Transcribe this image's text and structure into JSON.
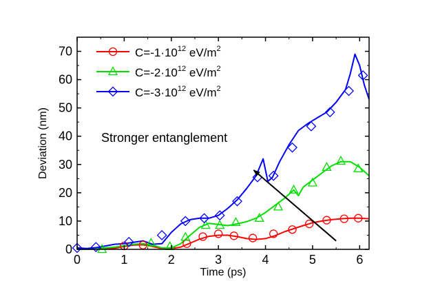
{
  "chart_data": {
    "type": "line",
    "xlabel": "Time (ps)",
    "ylabel": "Deviation (nm)",
    "xlim": [
      0,
      6.2
    ],
    "ylim": [
      0,
      75
    ],
    "xticks": [
      "0",
      "1",
      "2",
      "3",
      "4",
      "5",
      "6"
    ],
    "yticks": [
      "0",
      "10",
      "20",
      "30",
      "40",
      "50",
      "60",
      "70"
    ],
    "grid": false,
    "legend_position": "top-left",
    "annotation": {
      "text": "Stronger entanglement",
      "arrow_from": [
        5.5,
        3
      ],
      "arrow_to": [
        3.75,
        28
      ]
    },
    "series": [
      {
        "name_prefix": "C=-1·10",
        "name_exp": "12",
        "name_suffix": " eV/m",
        "name_unit_exp": "2",
        "color": "#ff0000",
        "marker": "circle",
        "x": [
          0,
          0.2,
          0.4,
          0.6,
          0.8,
          1.0,
          1.2,
          1.4,
          1.6,
          1.8,
          2.0,
          2.2,
          2.4,
          2.6,
          2.8,
          3.0,
          3.2,
          3.4,
          3.6,
          3.8,
          4.0,
          4.2,
          4.4,
          4.6,
          4.8,
          5.0,
          5.2,
          5.4,
          5.6,
          5.8,
          6.0,
          6.2
        ],
        "y": [
          0,
          0,
          0.1,
          0.2,
          0.4,
          1.0,
          1.5,
          1.6,
          1.0,
          0.3,
          0.3,
          0.8,
          2.2,
          3.6,
          4.6,
          5.0,
          5.0,
          4.5,
          3.8,
          3.5,
          3.8,
          4.8,
          6.2,
          7.3,
          8.4,
          9.4,
          10.0,
          10.5,
          10.8,
          11.0,
          11.0,
          10.8
        ],
        "marker_x": [
          1.0,
          1.4,
          2.33,
          2.67,
          3.0,
          3.33,
          3.73,
          4.17,
          4.57,
          4.93,
          5.3,
          5.67,
          5.97
        ],
        "marker_y": [
          1.2,
          1.5,
          2.0,
          4.5,
          5.5,
          4.8,
          4.0,
          5.5,
          7.0,
          9.0,
          10.3,
          10.8,
          11.0
        ]
      },
      {
        "name_prefix": "C=-2·10",
        "name_exp": "12",
        "name_suffix": " eV/m",
        "name_unit_exp": "2",
        "color": "#00dd00",
        "marker": "triangle",
        "x": [
          0,
          0.2,
          0.4,
          0.6,
          0.8,
          1.0,
          1.2,
          1.4,
          1.6,
          1.8,
          2.0,
          2.2,
          2.4,
          2.6,
          2.8,
          3.0,
          3.2,
          3.4,
          3.6,
          3.8,
          4.0,
          4.2,
          4.4,
          4.6,
          4.7,
          4.8,
          5.0,
          5.2,
          5.4,
          5.6,
          5.8,
          6.0,
          6.2
        ],
        "y": [
          0,
          0,
          0.2,
          0.5,
          0.8,
          1.3,
          1.8,
          2.0,
          1.5,
          0.5,
          0.5,
          2.0,
          5.0,
          7.8,
          9.2,
          8.8,
          8.4,
          9.0,
          9.8,
          11.0,
          13.0,
          15.5,
          18.0,
          21.0,
          19.0,
          22.0,
          24.5,
          27.0,
          29.5,
          31.0,
          31.0,
          29.0,
          26.0
        ],
        "marker_x": [
          0.53,
          1.57,
          1.97,
          2.3,
          2.73,
          3.03,
          3.37,
          3.87,
          4.27,
          4.6,
          5.0,
          5.3,
          5.6,
          5.97
        ],
        "marker_y": [
          0,
          2.2,
          1.0,
          4.3,
          8.5,
          8.5,
          9.5,
          11.0,
          15.0,
          21.0,
          23.5,
          29.0,
          31.2,
          28.5
        ]
      },
      {
        "name_prefix": "C=-3·10",
        "name_exp": "12",
        "name_suffix": " eV/m",
        "name_unit_exp": "2",
        "color": "#0000ff",
        "marker": "diamond",
        "x": [
          0,
          0.2,
          0.4,
          0.6,
          0.8,
          1.0,
          1.2,
          1.4,
          1.6,
          1.8,
          2.0,
          2.2,
          2.4,
          2.6,
          2.8,
          3.0,
          3.2,
          3.4,
          3.6,
          3.8,
          3.95,
          4.05,
          4.15,
          4.3,
          4.5,
          4.7,
          4.9,
          5.1,
          5.3,
          5.5,
          5.7,
          5.8,
          5.9,
          6.0,
          6.1,
          6.2
        ],
        "y": [
          0.5,
          0.3,
          0.6,
          1.2,
          1.8,
          2.0,
          2.5,
          3.0,
          1.8,
          2.0,
          6.0,
          9.0,
          10.5,
          11.0,
          11.0,
          12.0,
          14.5,
          17.5,
          21.5,
          26.0,
          32.0,
          24.0,
          25.5,
          31.0,
          37.0,
          42.0,
          44.5,
          46.5,
          48.5,
          52.0,
          56.5,
          62.0,
          69.0,
          65.0,
          58.0,
          53.0
        ],
        "marker_x": [
          0,
          0.4,
          1.1,
          1.8,
          2.3,
          2.7,
          3.03,
          3.4,
          3.83,
          4.17,
          4.57,
          4.97,
          5.37,
          5.77,
          6.07
        ],
        "marker_y": [
          0.5,
          0.8,
          2.6,
          5.0,
          10.0,
          11.0,
          12.0,
          17.0,
          25.5,
          26.0,
          36.0,
          43.5,
          48.5,
          56.0,
          61.5
        ]
      }
    ]
  }
}
